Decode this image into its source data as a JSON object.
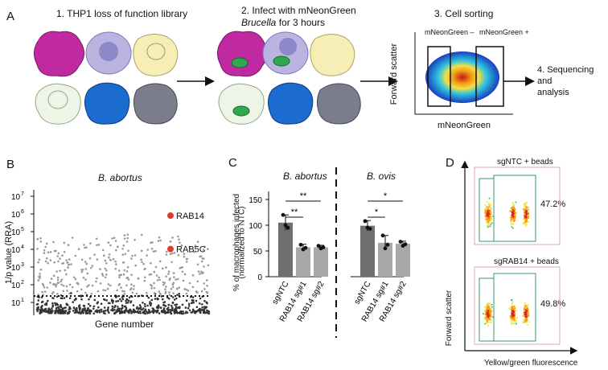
{
  "panels": {
    "A": {
      "letter": "A",
      "step1": "1. THP1 loss of function library",
      "step2_line1": "2. Infect with mNeonGreen",
      "step2_line2_italic": "Brucella",
      "step2_line2_rest": " for 3 hours",
      "step3": "3. Cell sorting",
      "gate_neg": "mNeonGreen –",
      "gate_pos": "mNeonGreen +",
      "y_axis": "Forward scatter",
      "x_axis": "mNeonGreen",
      "step4": [
        "4. Sequencing",
        "and",
        "analysis"
      ]
    },
    "B": {
      "letter": "B",
      "title": "B. abortus",
      "y_label": "1/p value (RRA)",
      "x_label": "Gene number",
      "y_ticks": [
        "10",
        "10",
        "10",
        "10",
        "10",
        "10",
        "10"
      ],
      "y_tick_exponents": [
        "1",
        "2",
        "3",
        "4",
        "5",
        "6",
        "7"
      ],
      "highlight_labels": [
        "RAB14",
        "RAB5C"
      ],
      "highlight_color": "#e0392b"
    },
    "C": {
      "letter": "C",
      "title_left": "B. abortus",
      "title_right": "B. ovis",
      "y_label_line1": "% of macrophages infected",
      "y_label_line2": "(normalized to NTC)",
      "y_ticks": [
        "0",
        "50",
        "100",
        "150"
      ],
      "sig_left": [
        "**",
        "**"
      ],
      "sig_right": [
        "*",
        "*"
      ]
    },
    "D": {
      "letter": "D",
      "top_title": "sgNTC + beads",
      "top_percent": "47.2%",
      "bottom_title": "sgRAB14 + beads",
      "bottom_percent": "49.8%",
      "y_axis": "Forward scatter",
      "x_axis": "Yellow/green fluorescence"
    }
  },
  "chart_data": [
    {
      "type": "scatter",
      "title": "B. abortus",
      "xlabel": "Gene number",
      "ylabel": "1/p value (RRA)",
      "y_scale": "log",
      "ylim": [
        10,
        10000000
      ],
      "threshold": 100,
      "highlighted_points": [
        {
          "name": "RAB14",
          "y": 3500000
        },
        {
          "name": "RAB5C",
          "y": 45000
        }
      ]
    },
    {
      "type": "bar",
      "ylabel": "% of macrophages infected (normalized to NTC)",
      "ylim": [
        0,
        150
      ],
      "groups": [
        {
          "name": "B. abortus",
          "categories": [
            "sgNTC",
            "RAB14 sg#1",
            "RAB14 sg#2"
          ],
          "values": [
            105,
            57,
            57
          ],
          "errors": [
            15,
            6,
            4
          ],
          "points": [
            [
              120,
              100,
              95
            ],
            [
              62,
              53,
              56
            ],
            [
              60,
              55,
              57
            ]
          ]
        },
        {
          "name": "B. ovis",
          "categories": [
            "sgNTC",
            "RAB14 sg#1",
            "RAB14 sg#2"
          ],
          "values": [
            99,
            66,
            64
          ],
          "errors": [
            10,
            14,
            5
          ],
          "points": [
            [
              108,
              95,
              93
            ],
            [
              80,
              55,
              62
            ],
            [
              68,
              60,
              63
            ]
          ]
        }
      ],
      "significance": [
        {
          "group": "B. abortus",
          "compare": [
            "sgNTC",
            "RAB14 sg#1"
          ],
          "label": "**"
        },
        {
          "group": "B. abortus",
          "compare": [
            "sgNTC",
            "RAB14 sg#2"
          ],
          "label": "**"
        },
        {
          "group": "B. ovis",
          "compare": [
            "sgNTC",
            "RAB14 sg#1"
          ],
          "label": "*"
        },
        {
          "group": "B. ovis",
          "compare": [
            "sgNTC",
            "RAB14 sg#2"
          ],
          "label": "*"
        }
      ]
    },
    {
      "type": "scatter",
      "xlabel": "Yellow/green fluorescence",
      "ylabel": "Forward scatter",
      "plots": [
        {
          "title": "sgNTC + beads",
          "gate_percent": 47.2
        },
        {
          "title": "sgRAB14 + beads",
          "gate_percent": 49.8
        }
      ]
    }
  ]
}
